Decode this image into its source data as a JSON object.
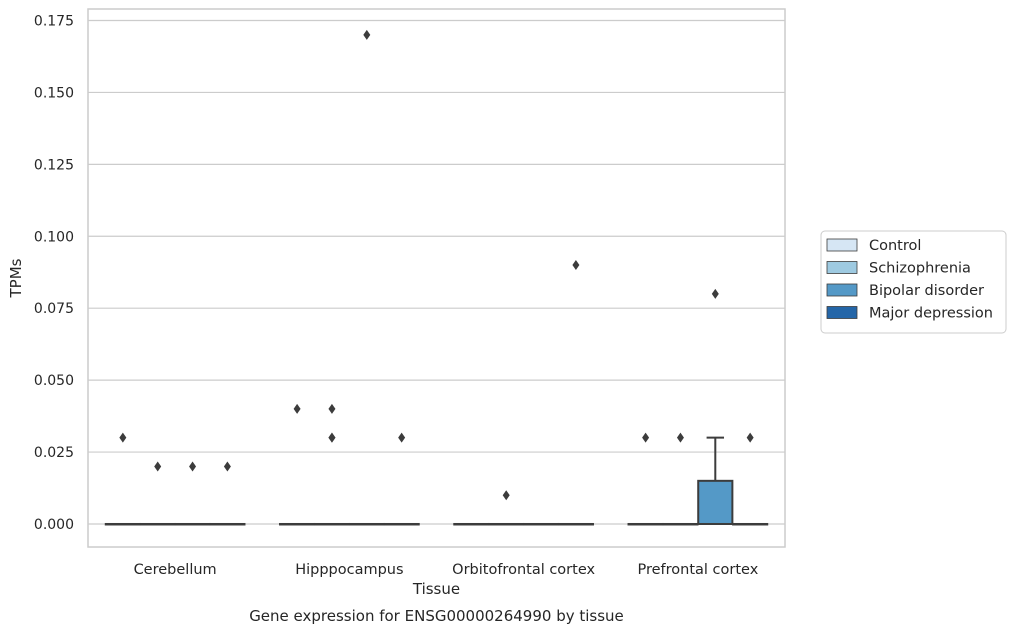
{
  "chart_data": {
    "type": "box",
    "caption": "Gene expression for ENSG00000264990 by tissue",
    "xlabel": "Tissue",
    "ylabel": "TPMs",
    "ylim": [
      -0.008,
      0.179
    ],
    "yticks": [
      0.0,
      0.025,
      0.05,
      0.075,
      0.1,
      0.125,
      0.15,
      0.175
    ],
    "ytick_labels": [
      "0.000",
      "0.025",
      "0.050",
      "0.075",
      "0.100",
      "0.125",
      "0.150",
      "0.175"
    ],
    "grid": true,
    "legend_position": "right",
    "categories": [
      "Cerebellum",
      "Hipppocampus",
      "Orbitofrontal cortex",
      "Prefrontal cortex"
    ],
    "series": [
      {
        "name": "Control",
        "color": "#d6e6f4",
        "boxes": [
          {
            "q1": 0,
            "median": 0,
            "q3": 0,
            "whisker_low": 0,
            "whisker_high": 0,
            "outliers": [
              0.03
            ]
          },
          {
            "q1": 0,
            "median": 0,
            "q3": 0,
            "whisker_low": 0,
            "whisker_high": 0,
            "outliers": [
              0.04
            ]
          },
          {
            "q1": 0,
            "median": 0,
            "q3": 0,
            "whisker_low": 0,
            "whisker_high": 0,
            "outliers": []
          },
          {
            "q1": 0,
            "median": 0,
            "q3": 0,
            "whisker_low": 0,
            "whisker_high": 0,
            "outliers": [
              0.03
            ]
          }
        ]
      },
      {
        "name": "Schizophrenia",
        "color": "#9ecae1",
        "boxes": [
          {
            "q1": 0,
            "median": 0,
            "q3": 0,
            "whisker_low": 0,
            "whisker_high": 0,
            "outliers": [
              0.02
            ]
          },
          {
            "q1": 0,
            "median": 0,
            "q3": 0,
            "whisker_low": 0,
            "whisker_high": 0,
            "outliers": [
              0.04,
              0.03,
              0.03
            ]
          },
          {
            "q1": 0,
            "median": 0,
            "q3": 0,
            "whisker_low": 0,
            "whisker_high": 0,
            "outliers": [
              0.01
            ]
          },
          {
            "q1": 0,
            "median": 0,
            "q3": 0,
            "whisker_low": 0,
            "whisker_high": 0,
            "outliers": [
              0.03
            ]
          }
        ]
      },
      {
        "name": "Bipolar disorder",
        "color": "#5499c7",
        "boxes": [
          {
            "q1": 0,
            "median": 0,
            "q3": 0,
            "whisker_low": 0,
            "whisker_high": 0,
            "outliers": [
              0.02
            ]
          },
          {
            "q1": 0,
            "median": 0,
            "q3": 0,
            "whisker_low": 0,
            "whisker_high": 0,
            "outliers": [
              0.17
            ]
          },
          {
            "q1": 0,
            "median": 0,
            "q3": 0,
            "whisker_low": 0,
            "whisker_high": 0,
            "outliers": []
          },
          {
            "q1": 0,
            "median": 0,
            "q3": 0.015,
            "whisker_low": 0,
            "whisker_high": 0.03,
            "outliers": [
              0.08
            ]
          }
        ]
      },
      {
        "name": "Major depression",
        "color": "#2466a8",
        "boxes": [
          {
            "q1": 0,
            "median": 0,
            "q3": 0,
            "whisker_low": 0,
            "whisker_high": 0,
            "outliers": [
              0.02
            ]
          },
          {
            "q1": 0,
            "median": 0,
            "q3": 0,
            "whisker_low": 0,
            "whisker_high": 0,
            "outliers": [
              0.03
            ]
          },
          {
            "q1": 0,
            "median": 0,
            "q3": 0,
            "whisker_low": 0,
            "whisker_high": 0,
            "outliers": [
              0.09
            ]
          },
          {
            "q1": 0,
            "median": 0,
            "q3": 0,
            "whisker_low": 0,
            "whisker_high": 0,
            "outliers": [
              0.03
            ]
          }
        ]
      }
    ]
  }
}
